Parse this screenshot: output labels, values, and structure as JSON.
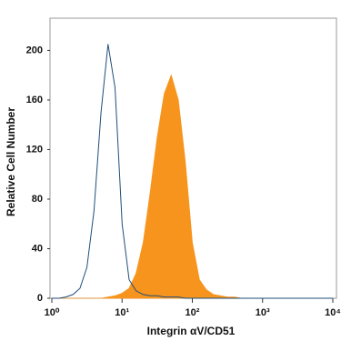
{
  "chart_data": {
    "type": "line",
    "x_label": "Integrin αV/CD51",
    "y_label": "Relative Cell Number",
    "x": [
      1,
      1.26,
      1.58,
      2,
      2.51,
      3.16,
      3.98,
      5.01,
      6.31,
      7.94,
      10,
      12.6,
      15.8,
      20,
      25.1,
      31.6,
      39.8,
      50.1,
      63.1,
      79.4,
      100,
      126,
      158,
      200,
      251,
      316,
      398,
      501,
      631,
      794,
      1000,
      1260,
      1580,
      2000,
      2510,
      3160,
      3980,
      5010,
      6310,
      7940,
      10000
    ],
    "series": [
      {
        "color": "#f7941d",
        "fill": true,
        "values": [
          0,
          0,
          0,
          0,
          0,
          0,
          0,
          0,
          1,
          2,
          4,
          8,
          20,
          45,
          85,
          130,
          165,
          180,
          160,
          110,
          45,
          15,
          7,
          3,
          2,
          1,
          1,
          0,
          0,
          0,
          0,
          0,
          0,
          0,
          0,
          0,
          0,
          0,
          0,
          0,
          0
        ]
      },
      {
        "color": "#1f4e79",
        "fill": false,
        "values": [
          0,
          0,
          1,
          3,
          8,
          25,
          70,
          150,
          205,
          170,
          60,
          15,
          6,
          3,
          2,
          2,
          1,
          1,
          1,
          0,
          0,
          0,
          0,
          0,
          0,
          0,
          0,
          0,
          0,
          0,
          0,
          0,
          0,
          0,
          0,
          0,
          0,
          0,
          0,
          0,
          0
        ]
      }
    ],
    "x_scale": "log",
    "xlim": [
      1,
      10000
    ],
    "xticks": [
      {
        "value": 1,
        "label": "10⁰"
      },
      {
        "value": 10,
        "label": "10¹"
      },
      {
        "value": 100,
        "label": "10²"
      },
      {
        "value": 1000,
        "label": "10³"
      },
      {
        "value": 10000,
        "label": "10⁴"
      }
    ],
    "ylim": [
      0,
      226
    ],
    "yticks": [
      0,
      40,
      80,
      120,
      160,
      200
    ],
    "grid": false
  }
}
